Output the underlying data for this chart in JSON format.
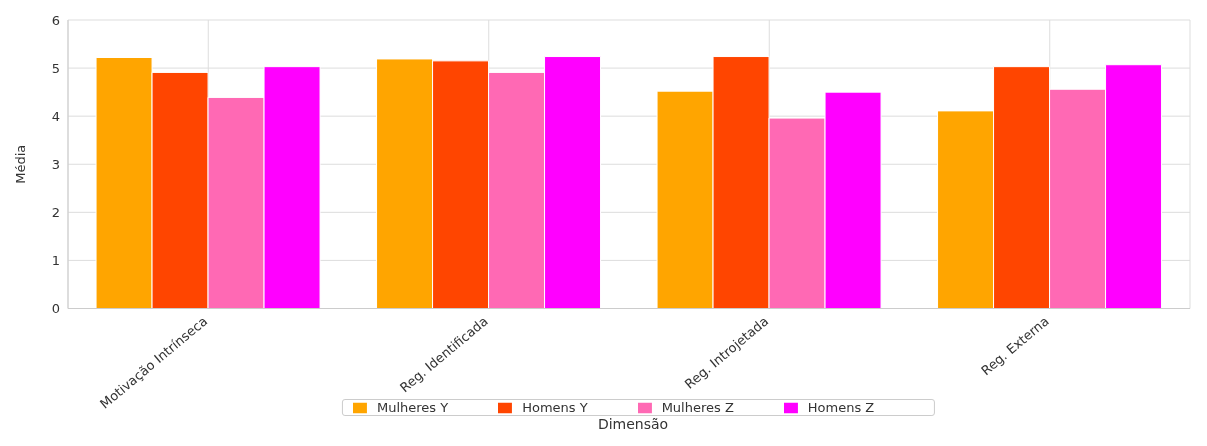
{
  "chart_data": {
    "type": "bar",
    "xlabel": "Dimensão",
    "ylabel": "Média",
    "categories": [
      "Motivação Intrínseca",
      "Reg. Identificada",
      "Reg. Introjetada",
      "Reg. Externa"
    ],
    "series": [
      {
        "name": "Mulheres Y",
        "color": "#ffa500",
        "values": [
          5.22,
          5.19,
          4.52,
          4.11
        ]
      },
      {
        "name": "Homens Y",
        "color": "#ff4500",
        "values": [
          4.91,
          5.15,
          5.24,
          5.03
        ]
      },
      {
        "name": "Mulheres Z",
        "color": "#ff69b4",
        "values": [
          4.39,
          4.91,
          3.96,
          4.56
        ]
      },
      {
        "name": "Homens Z",
        "color": "#ff00ff",
        "values": [
          5.03,
          5.24,
          4.5,
          5.07
        ]
      }
    ],
    "ylim": [
      0,
      6
    ],
    "yticks": [
      0,
      1,
      2,
      3,
      4,
      5,
      6
    ],
    "grid": true,
    "legend": "bottom"
  }
}
